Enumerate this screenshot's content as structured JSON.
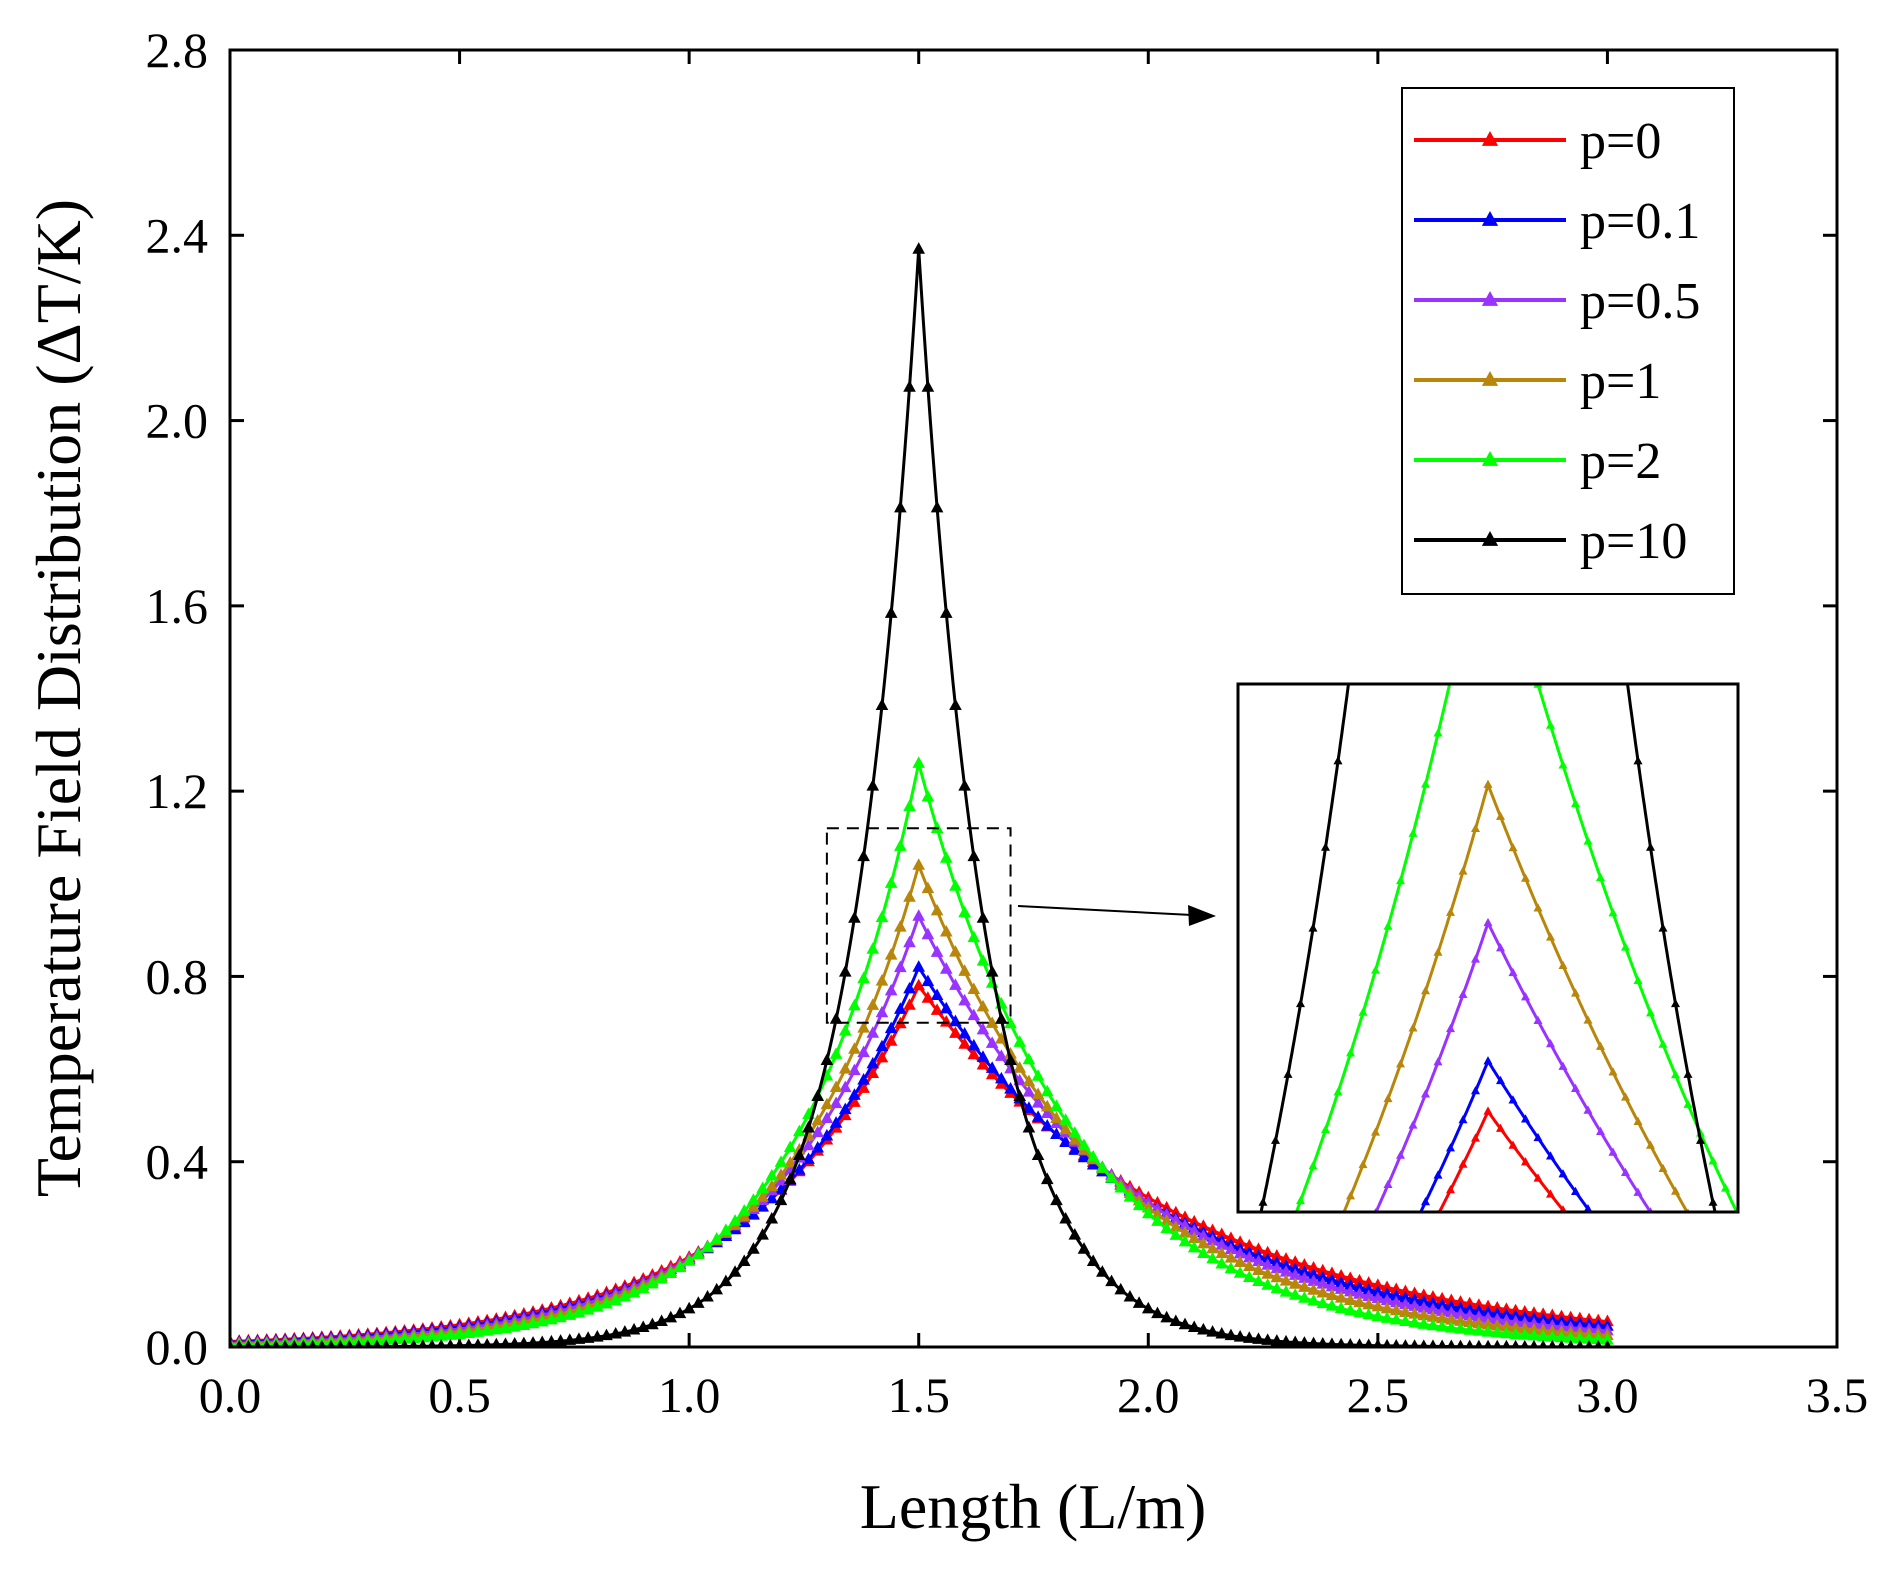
{
  "chart_data": {
    "type": "line",
    "xlabel": "Length (L/m)",
    "ylabel": "Temperature Field Distribution (ΔT/K)",
    "xlim": [
      0,
      3.5
    ],
    "ylim": [
      0,
      2.8
    ],
    "xticks": [
      "0.0",
      "0.5",
      "1.0",
      "1.5",
      "2.0",
      "2.5",
      "3.0",
      "3.5"
    ],
    "yticks": [
      "0.0",
      "0.4",
      "0.8",
      "1.2",
      "1.6",
      "2.0",
      "2.4",
      "2.8"
    ],
    "legend_position": "top-right",
    "marker": "triangle",
    "series": [
      {
        "name": "p=0",
        "color": "#ff0000",
        "peak_x": 1.5,
        "peak": 0.78,
        "left_end": 0.012,
        "right_end": 0.055
      },
      {
        "name": "p=0.1",
        "color": "#0000ff",
        "peak_x": 1.5,
        "peak": 0.82,
        "left_end": 0.01,
        "right_end": 0.045
      },
      {
        "name": "p=0.5",
        "color": "#9933ff",
        "peak_x": 1.5,
        "peak": 0.93,
        "left_end": 0.008,
        "right_end": 0.035
      },
      {
        "name": "p=1",
        "color": "#b8860b",
        "peak_x": 1.5,
        "peak": 1.04,
        "left_end": 0.006,
        "right_end": 0.025
      },
      {
        "name": "p=2",
        "color": "#00ff00",
        "peak_x": 1.5,
        "peak": 1.26,
        "left_end": 0.004,
        "right_end": 0.015
      },
      {
        "name": "p=10",
        "color": "#000000",
        "peak_x": 1.5,
        "peak": 2.37,
        "left_end": 0.0001,
        "right_end": 0.0001
      }
    ],
    "zoom_region": {
      "xlim": [
        1.3,
        1.7
      ],
      "ylim": [
        0.7,
        1.12
      ]
    }
  }
}
